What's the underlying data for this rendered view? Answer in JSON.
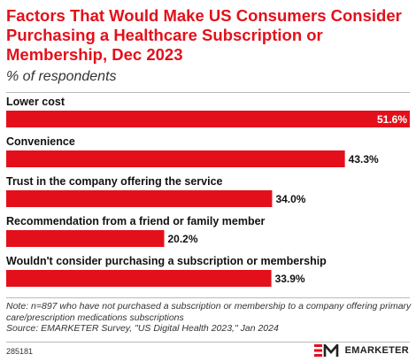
{
  "header": {
    "title": "Factors That Would Make US Consumers Consider Purchasing a Healthcare Subscription or Membership, Dec 2023",
    "subtitle": "% of respondents"
  },
  "chart_data": {
    "type": "bar",
    "orientation": "horizontal",
    "categories": [
      "Lower cost",
      "Convenience",
      "Trust in the company offering the service",
      "Recommendation from a friend or family member",
      "Wouldn't consider purchasing a subscription or membership"
    ],
    "values": [
      51.6,
      43.3,
      34.0,
      20.2,
      33.9
    ],
    "value_labels": [
      "51.6%",
      "43.3%",
      "34.0%",
      "20.2%",
      "33.9%"
    ],
    "xlim": [
      0,
      51.6
    ],
    "grid": false,
    "bar_color": "#e3101b"
  },
  "footer": {
    "note": "Note: n=897 who have not purchased a subscription or membership to a company offering primary care/prescription medications subscriptions",
    "source": "Source: EMARKETER Survey, \"US Digital Health 2023,\" Jan 2024",
    "chart_id": "285181",
    "brand": "EMARKETER"
  }
}
